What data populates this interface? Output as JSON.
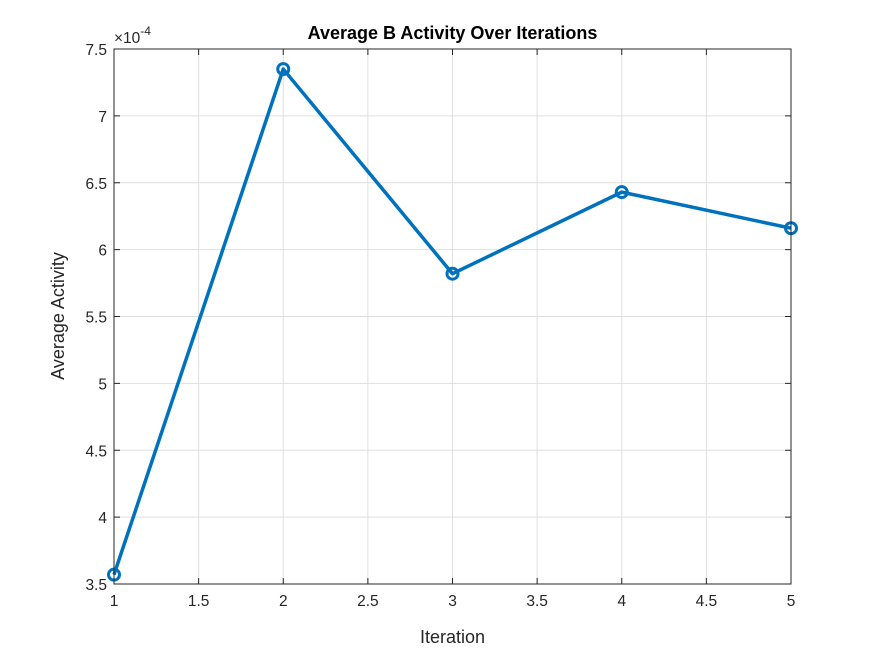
{
  "chart_data": {
    "type": "line",
    "title": "Average B Activity Over Iterations",
    "xlabel": "Iteration",
    "ylabel": "Average Activity",
    "y_exponent_base": "×10",
    "y_exponent_power": "-4",
    "xlim": [
      1,
      5
    ],
    "ylim": [
      3.5,
      7.5
    ],
    "x_ticks": [
      1,
      1.5,
      2,
      2.5,
      3,
      3.5,
      4,
      4.5,
      5
    ],
    "y_ticks": [
      3.5,
      4,
      4.5,
      5,
      5.5,
      6,
      6.5,
      7,
      7.5
    ],
    "grid": true,
    "series": [
      {
        "x": [
          1,
          2,
          3,
          4,
          5
        ],
        "y": [
          3.57,
          7.35,
          5.82,
          6.43,
          6.16
        ],
        "color": "#0072BD",
        "marker": "circle"
      }
    ]
  }
}
